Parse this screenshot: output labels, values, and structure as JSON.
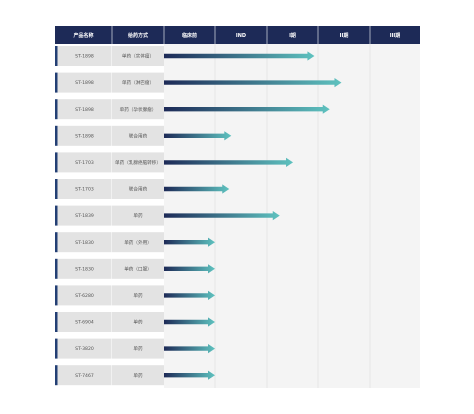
{
  "colors": {
    "header_bg": "#1d2a57",
    "row_cell_bg": "#e3e3e3",
    "row_accent": "#233f74",
    "stage_bg": "#f4f4f4",
    "arrow_start": "#1d2a57",
    "arrow_end": "#5ec2bf"
  },
  "chart_data": {
    "type": "bar",
    "orientation": "horizontal",
    "columns": [
      "产品名称",
      "给药方式",
      "临床前",
      "IND",
      "I期",
      "II期",
      "III期"
    ],
    "stages": [
      "临床前",
      "IND",
      "I期",
      "II期",
      "III期"
    ],
    "rows": [
      {
        "product": "ST-1898",
        "route": "单药（实体瘤）",
        "progress": 2.95
      },
      {
        "product": "ST-1898",
        "route": "单药（淋巴瘤）",
        "progress": 3.48
      },
      {
        "product": "ST-1898",
        "route": "单药（孕状腺瘤）",
        "progress": 3.25
      },
      {
        "product": "ST-1898",
        "route": "联合用药",
        "progress": 1.32
      },
      {
        "product": "ST-1703",
        "route": "单药（乳腺癌脑转移）",
        "progress": 2.53
      },
      {
        "product": "ST-1703",
        "route": "联合用药",
        "progress": 1.28
      },
      {
        "product": "ST-1839",
        "route": "单药",
        "progress": 2.27
      },
      {
        "product": "ST-1830",
        "route": "单药（外用）",
        "progress": 1.0
      },
      {
        "product": "ST-1830",
        "route": "单药（口服）",
        "progress": 1.0
      },
      {
        "product": "ST-6280",
        "route": "单药",
        "progress": 1.0
      },
      {
        "product": "ST-6904",
        "route": "单药",
        "progress": 1.0
      },
      {
        "product": "ST-3820",
        "route": "单药",
        "progress": 1.0
      },
      {
        "product": "ST-7467",
        "route": "单药",
        "progress": 1.0
      }
    ],
    "progress_unit": "stages completed (0–5)"
  }
}
